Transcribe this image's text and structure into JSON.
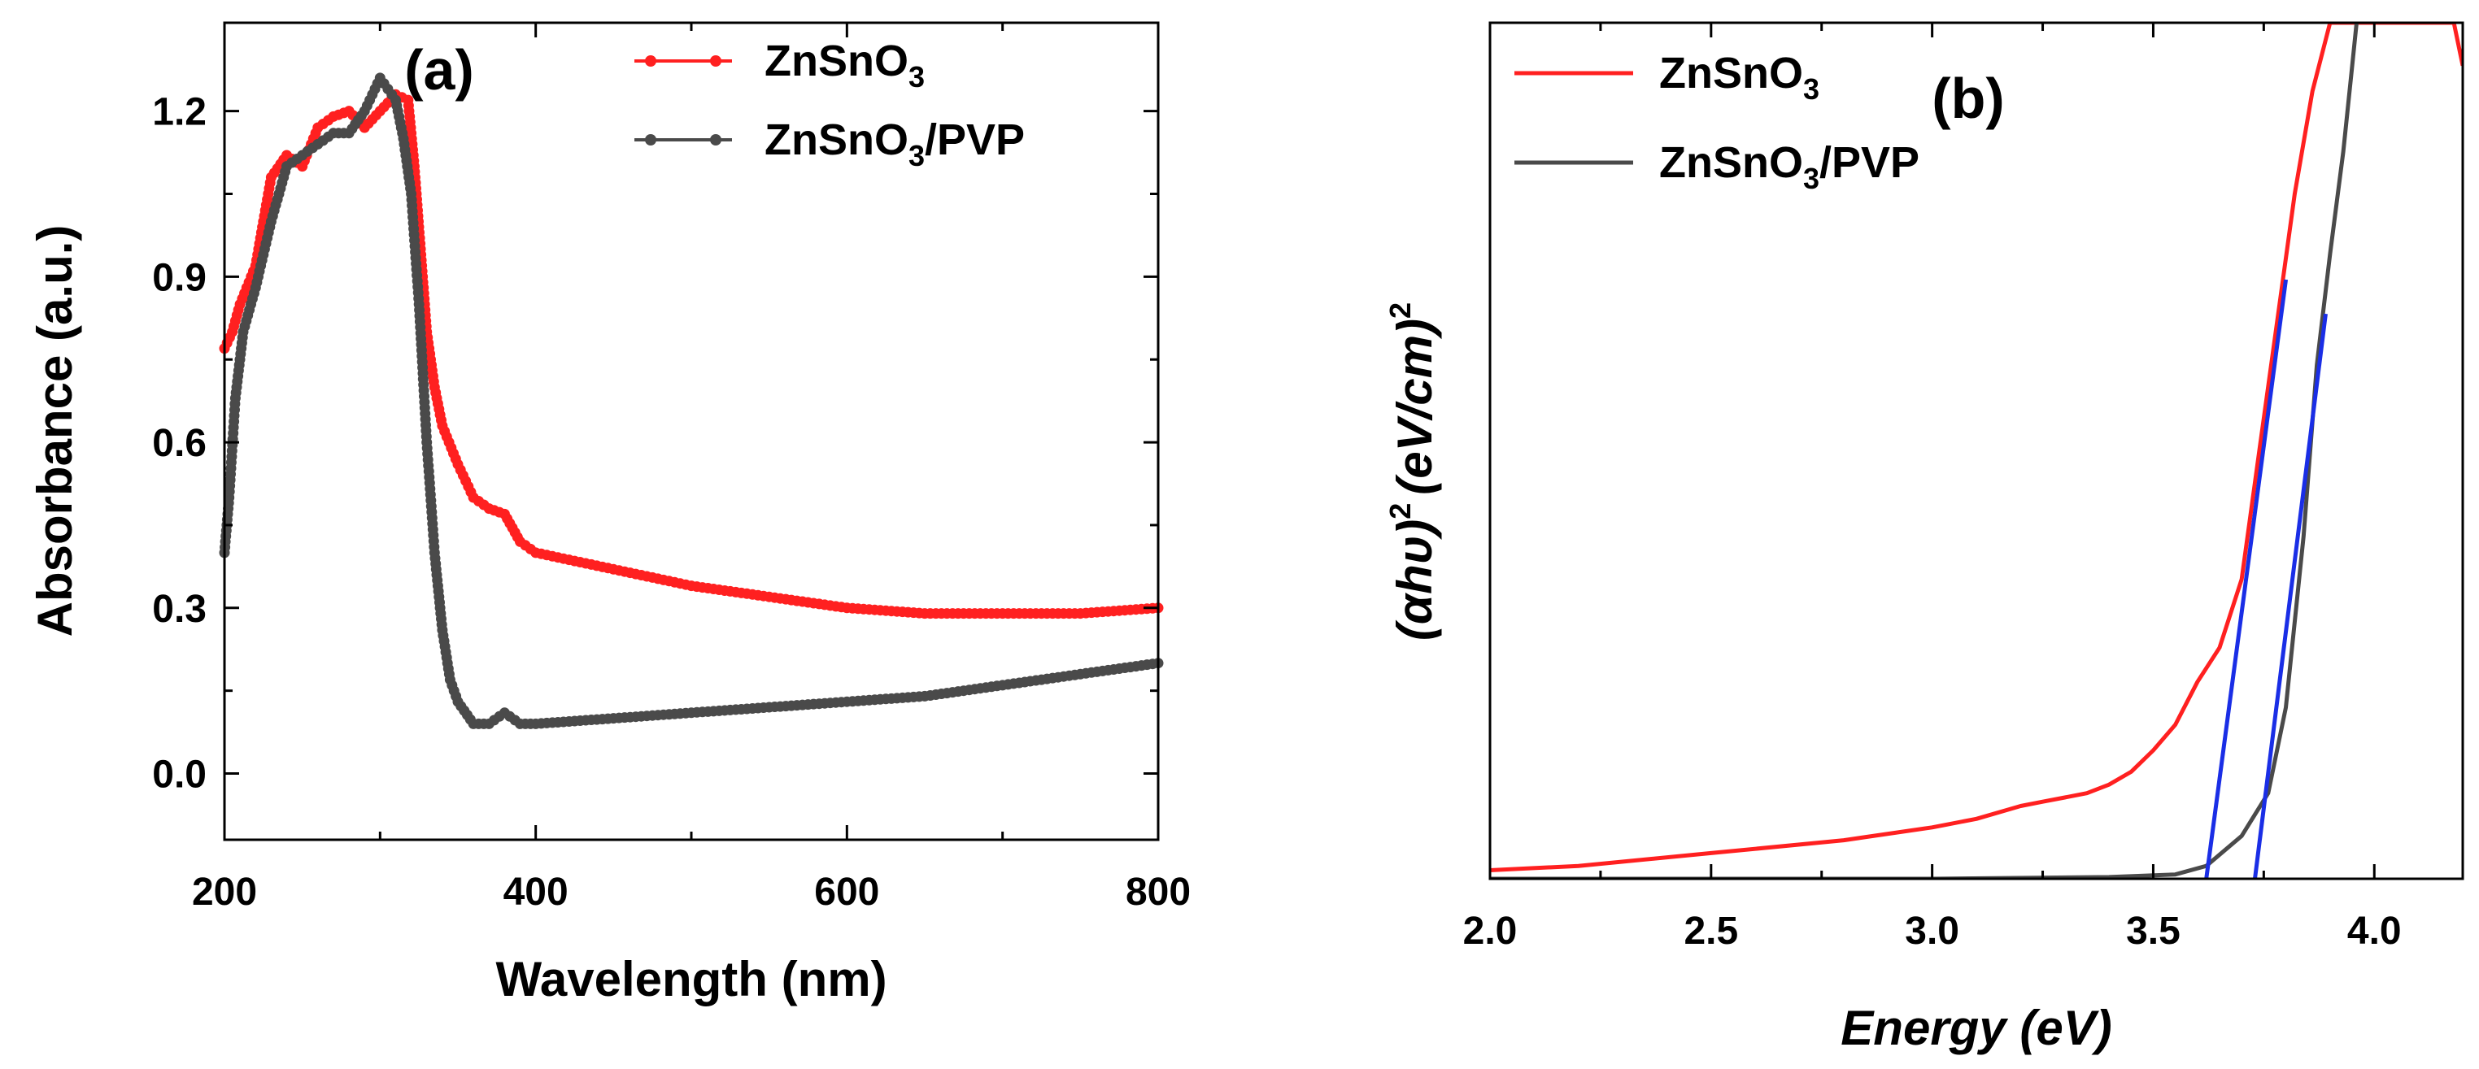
{
  "chart_data": [
    {
      "type": "line",
      "panel_label": "(a)",
      "title": "",
      "xlabel": "Wavelength (nm)",
      "ylabel": "Absorbance (a.u.)",
      "xlim": [
        200,
        800
      ],
      "ylim": [
        -0.12,
        1.36
      ],
      "x_ticks": [
        200,
        400,
        600,
        800
      ],
      "x_tick_labels": [
        "200",
        "400",
        "600",
        "800"
      ],
      "y_ticks": [
        0.0,
        0.3,
        0.6,
        0.9,
        1.2
      ],
      "y_tick_labels": [
        "0.0",
        "0.3",
        "0.6",
        "0.9",
        "1.2"
      ],
      "grid": false,
      "legend_position": "top-right",
      "series": [
        {
          "name": "ZnSnO3",
          "legend_main": "ZnSnO",
          "legend_sub": "3",
          "legend_suffix": "",
          "color": "#ff2020",
          "marker": "circle",
          "points": [
            [
              200,
              0.77
            ],
            [
              205,
              0.8
            ],
            [
              210,
              0.85
            ],
            [
              220,
              0.92
            ],
            [
              230,
              1.08
            ],
            [
              240,
              1.12
            ],
            [
              250,
              1.1
            ],
            [
              260,
              1.17
            ],
            [
              270,
              1.19
            ],
            [
              280,
              1.2
            ],
            [
              290,
              1.17
            ],
            [
              300,
              1.2
            ],
            [
              310,
              1.23
            ],
            [
              318,
              1.22
            ],
            [
              322,
              1.1
            ],
            [
              326,
              0.95
            ],
            [
              330,
              0.8
            ],
            [
              335,
              0.7
            ],
            [
              340,
              0.63
            ],
            [
              350,
              0.56
            ],
            [
              360,
              0.5
            ],
            [
              370,
              0.48
            ],
            [
              380,
              0.47
            ],
            [
              390,
              0.42
            ],
            [
              400,
              0.4
            ],
            [
              450,
              0.37
            ],
            [
              500,
              0.34
            ],
            [
              550,
              0.32
            ],
            [
              600,
              0.3
            ],
            [
              650,
              0.29
            ],
            [
              700,
              0.29
            ],
            [
              750,
              0.29
            ],
            [
              800,
              0.3
            ]
          ]
        },
        {
          "name": "ZnSnO3/PVP",
          "legend_main": "ZnSnO",
          "legend_sub": "3",
          "legend_suffix": "/PVP",
          "color": "#4a4a4a",
          "marker": "circle",
          "points": [
            [
              200,
              0.4
            ],
            [
              203,
              0.5
            ],
            [
              207,
              0.68
            ],
            [
              212,
              0.8
            ],
            [
              220,
              0.88
            ],
            [
              230,
              1.0
            ],
            [
              240,
              1.1
            ],
            [
              250,
              1.12
            ],
            [
              260,
              1.14
            ],
            [
              270,
              1.16
            ],
            [
              280,
              1.16
            ],
            [
              290,
              1.2
            ],
            [
              300,
              1.26
            ],
            [
              305,
              1.24
            ],
            [
              310,
              1.22
            ],
            [
              315,
              1.15
            ],
            [
              320,
              1.05
            ],
            [
              325,
              0.85
            ],
            [
              330,
              0.6
            ],
            [
              335,
              0.4
            ],
            [
              340,
              0.26
            ],
            [
              345,
              0.17
            ],
            [
              350,
              0.13
            ],
            [
              360,
              0.09
            ],
            [
              370,
              0.09
            ],
            [
              380,
              0.11
            ],
            [
              390,
              0.09
            ],
            [
              400,
              0.09
            ],
            [
              450,
              0.1
            ],
            [
              500,
              0.11
            ],
            [
              550,
              0.12
            ],
            [
              600,
              0.13
            ],
            [
              650,
              0.14
            ],
            [
              700,
              0.16
            ],
            [
              750,
              0.18
            ],
            [
              800,
              0.2
            ]
          ]
        }
      ]
    },
    {
      "type": "line",
      "panel_label": "(b)",
      "title": "",
      "xlabel": "Energy (eV)",
      "ylabel_main": "(αhυ)",
      "ylabel_sup1": "2",
      "ylabel_unit": "(eV/cm)",
      "ylabel_sup2": "2",
      "xlim": [
        2.0,
        4.2
      ],
      "ylim": [
        0,
        1
      ],
      "x_ticks": [
        2.0,
        2.5,
        3.0,
        3.5,
        4.0
      ],
      "x_tick_labels": [
        "2.0",
        "2.5",
        "3.0",
        "3.5",
        "4.0"
      ],
      "y_ticks": [],
      "grid": false,
      "legend_position": "top-left",
      "series": [
        {
          "name": "ZnSnO3",
          "legend_main": "ZnSnO",
          "legend_sub": "3",
          "legend_suffix": "",
          "color": "#ff2020",
          "points": [
            [
              2.0,
              0.01
            ],
            [
              2.2,
              0.015
            ],
            [
              2.5,
              0.03
            ],
            [
              2.8,
              0.045
            ],
            [
              3.0,
              0.06
            ],
            [
              3.1,
              0.07
            ],
            [
              3.2,
              0.085
            ],
            [
              3.25,
              0.09
            ],
            [
              3.3,
              0.095
            ],
            [
              3.35,
              0.1
            ],
            [
              3.4,
              0.11
            ],
            [
              3.45,
              0.125
            ],
            [
              3.5,
              0.15
            ],
            [
              3.55,
              0.18
            ],
            [
              3.6,
              0.23
            ],
            [
              3.65,
              0.27
            ],
            [
              3.7,
              0.35
            ],
            [
              3.74,
              0.5
            ],
            [
              3.78,
              0.65
            ],
            [
              3.82,
              0.8
            ],
            [
              3.86,
              0.92
            ],
            [
              3.9,
              1.0
            ],
            [
              4.0,
              1.0
            ],
            [
              4.1,
              1.0
            ],
            [
              4.18,
              1.0
            ],
            [
              4.2,
              0.95
            ]
          ]
        },
        {
          "name": "ZnSnO3/PVP",
          "legend_main": "ZnSnO",
          "legend_sub": "3",
          "legend_suffix": "/PVP",
          "color": "#4a4a4a",
          "points": [
            [
              2.0,
              0.0
            ],
            [
              3.0,
              0.0
            ],
            [
              3.4,
              0.002
            ],
            [
              3.55,
              0.005
            ],
            [
              3.62,
              0.015
            ],
            [
              3.7,
              0.05
            ],
            [
              3.76,
              0.1
            ],
            [
              3.8,
              0.2
            ],
            [
              3.84,
              0.4
            ],
            [
              3.87,
              0.6
            ],
            [
              3.9,
              0.73
            ],
            [
              3.93,
              0.85
            ],
            [
              3.95,
              0.95
            ],
            [
              3.96,
              1.0
            ]
          ]
        }
      ],
      "fit_lines": [
        {
          "name": "ZnSnO3 fit",
          "color": "#1a2ee6",
          "x": [
            3.62,
            3.8
          ],
          "y": [
            0.0,
            0.7
          ]
        },
        {
          "name": "ZnSnO3/PVP fit",
          "color": "#1a2ee6",
          "x": [
            3.73,
            3.89
          ],
          "y": [
            0.0,
            0.66
          ]
        }
      ]
    }
  ]
}
